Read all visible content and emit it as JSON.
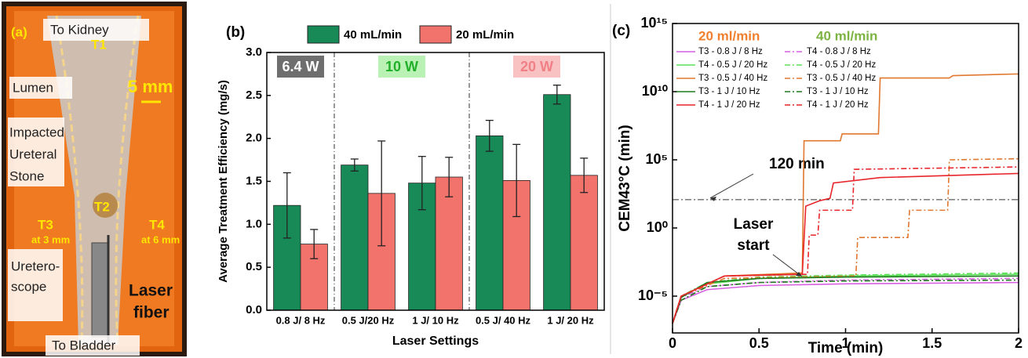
{
  "panel_a": {
    "panel_label": "(a)",
    "to_kidney": "To Kidney",
    "t1": "T1",
    "lumen": "Lumen",
    "scale": "5 mm",
    "stone": [
      "Impacted",
      "Ureteral",
      "Stone"
    ],
    "t2": "T2",
    "t3": "T3",
    "t3_sub": "at 3 mm",
    "t4": "T4",
    "t4_sub": "at 6 mm",
    "scope": [
      "Uretero-",
      "scope"
    ],
    "fiber": [
      "Laser",
      "fiber"
    ],
    "to_bladder": "To Bladder"
  },
  "chart_data": [
    {
      "type": "bar",
      "panel_label": "(b)",
      "categories": [
        "0.8 J/ 8 Hz",
        "0.5 J/20 Hz",
        "1 J/ 10 Hz",
        "0.5 J/ 40 Hz",
        "1 J/ 20 Hz"
      ],
      "series": [
        {
          "name": "40 mL/min",
          "color": "#178a58",
          "values": [
            1.22,
            1.69,
            1.48,
            2.03,
            2.51
          ],
          "errors": [
            0.38,
            0.07,
            0.31,
            0.18,
            0.11
          ]
        },
        {
          "name": "20 mL/min",
          "color": "#f2726c",
          "values": [
            0.77,
            1.36,
            1.55,
            1.51,
            1.57
          ],
          "errors": [
            0.17,
            0.61,
            0.23,
            0.42,
            0.2
          ]
        }
      ],
      "ylim": [
        0,
        3
      ],
      "yticks": [
        {
          "value": 0,
          "label": "0.0"
        },
        0.5,
        {
          "value": 1,
          "label": "1.0"
        },
        1.5,
        {
          "value": 2,
          "label": "2.0"
        },
        2.5,
        {
          "value": 3,
          "label": "3.0"
        }
      ],
      "ylabel": "Average Treatment Efficiency (mg/s)",
      "xlabel": "Laser Settings",
      "annotations": [
        "6.4 W",
        "10 W",
        "20 W"
      ]
    },
    {
      "type": "line",
      "panel_label": "(c)",
      "log_y": true,
      "ylabel": "CEM43°C (min)",
      "xlabel": "Time (min)",
      "xlim": [
        0,
        2
      ],
      "xticks": [
        0,
        0.5,
        1,
        1.5,
        2
      ],
      "ylim": [
        2e-08,
        1000000000000000.0
      ],
      "yticks": [
        {
          "value": 1e-05,
          "label": "10⁻⁵"
        },
        {
          "value": 1,
          "label": "10⁰"
        },
        {
          "value": 100000.0,
          "label": "10⁵"
        },
        {
          "value": 10000000000.0,
          "label": "10¹⁰"
        },
        {
          "value": 1000000000000000.0,
          "label": "10¹⁵"
        }
      ],
      "legend_headers": [
        {
          "text": "20 ml/min",
          "color": "#f07f2f"
        },
        {
          "text": "40 ml/min",
          "color": "#7cb342"
        }
      ],
      "series": [
        {
          "name": "T3 - 0.8 J / 8 Hz",
          "color": "#d65fe0",
          "linestyle": "solid",
          "x": [
            0,
            0.05,
            0.2,
            0.5,
            1,
            2
          ],
          "values": [
            1e-07,
            5e-06,
            3e-05,
            6e-05,
            8e-05,
            0.0001
          ]
        },
        {
          "name": "T4 - 0.8 J / 8 Hz",
          "color": "#d65fe0",
          "linestyle": "dashdot",
          "x": [
            0,
            0.05,
            0.2,
            0.5,
            1,
            2
          ],
          "values": [
            1e-07,
            8e-06,
            5e-05,
            0.0001,
            0.00015,
            0.0002
          ]
        },
        {
          "name": "T4 - 0.5 J / 20 Hz",
          "color": "#5fe05a",
          "linestyle": "solid",
          "x": [
            0,
            0.05,
            0.2,
            0.5,
            1,
            2
          ],
          "values": [
            1e-07,
            1e-05,
            8e-05,
            0.0002,
            0.0003,
            0.0004
          ]
        },
        {
          "name": "T4 - 0.5 J / 20 Hz",
          "color": "#5fe05a",
          "linestyle": "dashdot",
          "x": [
            0,
            0.05,
            0.2,
            0.5,
            1,
            2
          ],
          "values": [
            1e-07,
            1e-05,
            0.0001,
            0.00025,
            0.00035,
            0.0005
          ]
        },
        {
          "name": "T3 - 0.5 J / 40 Hz",
          "color": "#e0782f",
          "linestyle": "solid",
          "x": [
            0,
            0.05,
            0.3,
            0.75,
            0.76,
            0.97,
            0.98,
            1.19,
            1.2,
            1.6,
            1.62,
            2
          ],
          "values": [
            1e-07,
            1e-05,
            0.0003,
            0.0005,
            2500000.0,
            2500000.0,
            8000000.0,
            8000000.0,
            100000000000.0,
            100000000000.0,
            150000000000.0,
            200000000000.0
          ]
        },
        {
          "name": "T3 - 0.5 J / 40 Hz",
          "color": "#e0782f",
          "linestyle": "dashdot",
          "x": [
            0,
            0.05,
            0.3,
            1.06,
            1.07,
            1.36,
            1.37,
            1.59,
            1.6,
            2
          ],
          "values": [
            1e-07,
            1e-05,
            0.0002,
            0.0003,
            0.2,
            0.2,
            20,
            20,
            100000.0,
            120000.0
          ]
        },
        {
          "name": "T3 - 1 J / 10 Hz",
          "color": "#1e7a1e",
          "linestyle": "solid",
          "x": [
            0,
            0.05,
            0.2,
            0.5,
            1,
            2
          ],
          "values": [
            1e-07,
            8e-06,
            0.0001,
            0.0002,
            0.00025,
            0.0003
          ]
        },
        {
          "name": "T3 - 1 J / 10 Hz",
          "color": "#1e7a1e",
          "linestyle": "dashdot",
          "x": [
            0,
            0.05,
            0.2,
            0.5,
            1,
            2
          ],
          "values": [
            1e-07,
            5e-06,
            5e-05,
            0.0001,
            0.00013,
            0.00015
          ]
        },
        {
          "name": "T4 - 1 J / 20 Hz",
          "color": "#e8252a",
          "linestyle": "solid",
          "x": [
            0,
            0.05,
            0.3,
            0.75,
            0.77,
            0.85,
            0.91,
            0.93,
            1.2,
            2
          ],
          "values": [
            1e-07,
            1e-05,
            0.0003,
            0.0004,
            40,
            100,
            150,
            2000,
            5000,
            10000.0
          ]
        },
        {
          "name": "T4 - 1 J / 20 Hz",
          "color": "#e8252a",
          "linestyle": "dashdot",
          "x": [
            0,
            0.05,
            0.3,
            0.78,
            0.79,
            0.84,
            0.85,
            1.04,
            1.05,
            2
          ],
          "values": [
            1e-07,
            1e-05,
            0.0003,
            0.0004,
            0.3,
            0.3,
            20,
            20,
            20000.0,
            30000.0
          ]
        }
      ],
      "threshold": {
        "value": 120,
        "label": "120 min"
      },
      "annotation": [
        "Laser",
        "start"
      ]
    }
  ]
}
